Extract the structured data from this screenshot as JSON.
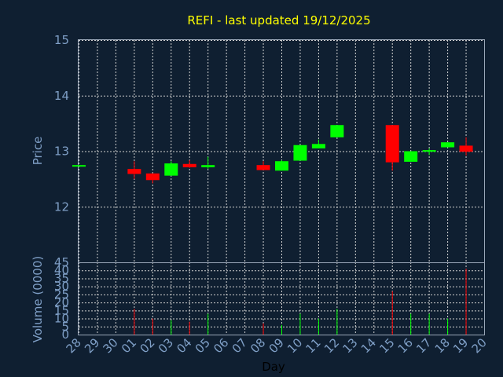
{
  "chart_data": {
    "title": "REFI - last updated 19/12/2025",
    "type": "candlestick",
    "xlabel": "Day",
    "days": [
      "28",
      "29",
      "30",
      "01",
      "02",
      "03",
      "04",
      "05",
      "06",
      "07",
      "08",
      "09",
      "10",
      "11",
      "12",
      "13",
      "14",
      "15",
      "16",
      "17",
      "18",
      "19",
      "20"
    ],
    "price": {
      "ylabel": "Price",
      "ylim": [
        11,
        15
      ],
      "yticks": [
        12,
        13,
        14,
        15
      ],
      "candles": [
        {
          "day": "28",
          "open": 12.75,
          "close": 12.75,
          "high": 12.75,
          "low": 12.75,
          "color": "#00ff00"
        },
        {
          "day": "01",
          "open": 12.68,
          "close": 12.59,
          "high": 12.82,
          "low": 12.5,
          "color": "#ff0000"
        },
        {
          "day": "02",
          "open": 12.6,
          "close": 12.48,
          "high": 12.6,
          "low": 12.42,
          "color": "#ff0000"
        },
        {
          "day": "03",
          "open": 12.56,
          "close": 12.78,
          "high": 12.82,
          "low": 12.56,
          "color": "#00ff00"
        },
        {
          "day": "04",
          "open": 12.77,
          "close": 12.71,
          "high": 12.84,
          "low": 12.7,
          "color": "#ff0000"
        },
        {
          "day": "05",
          "open": 12.71,
          "close": 12.75,
          "high": 12.9,
          "low": 12.68,
          "color": "#00ff00"
        },
        {
          "day": "08",
          "open": 12.75,
          "close": 12.66,
          "high": 12.82,
          "low": 12.66,
          "color": "#ff0000"
        },
        {
          "day": "09",
          "open": 12.65,
          "close": 12.82,
          "high": 12.84,
          "low": 12.65,
          "color": "#00ff00"
        },
        {
          "day": "10",
          "open": 12.83,
          "close": 13.11,
          "high": 13.11,
          "low": 12.83,
          "color": "#00ff00"
        },
        {
          "day": "11",
          "open": 13.05,
          "close": 13.13,
          "high": 13.21,
          "low": 13.05,
          "color": "#00ff00"
        },
        {
          "day": "12",
          "open": 13.25,
          "close": 13.47,
          "high": 13.47,
          "low": 13.25,
          "color": "#00ff00"
        },
        {
          "day": "15",
          "open": 13.47,
          "close": 12.8,
          "high": 13.47,
          "low": 12.65,
          "color": "#ff0000"
        },
        {
          "day": "16",
          "open": 12.81,
          "close": 13.0,
          "high": 13.0,
          "low": 12.81,
          "color": "#00ff00"
        },
        {
          "day": "17",
          "open": 12.99,
          "close": 13.02,
          "high": 13.05,
          "low": 12.93,
          "color": "#00ff00"
        },
        {
          "day": "18",
          "open": 13.07,
          "close": 13.16,
          "high": 13.16,
          "low": 13.07,
          "color": "#00ff00"
        },
        {
          "day": "19",
          "open": 13.1,
          "close": 12.99,
          "high": 13.25,
          "low": 12.92,
          "color": "#ff0000"
        }
      ]
    },
    "volume": {
      "ylabel": "Volume (0000)",
      "ylim": [
        0,
        45
      ],
      "yticks": [
        0,
        5,
        10,
        15,
        20,
        25,
        30,
        35,
        40,
        45
      ],
      "bars": [
        {
          "day": "01",
          "value": 16,
          "color": "#ff0000"
        },
        {
          "day": "02",
          "value": 10,
          "color": "#ff0000"
        },
        {
          "day": "03",
          "value": 9,
          "color": "#00ff00"
        },
        {
          "day": "04",
          "value": 8,
          "color": "#ff0000"
        },
        {
          "day": "05",
          "value": 13,
          "color": "#00ff00"
        },
        {
          "day": "08",
          "value": 7,
          "color": "#ff0000"
        },
        {
          "day": "09",
          "value": 6,
          "color": "#00ff00"
        },
        {
          "day": "10",
          "value": 13,
          "color": "#00ff00"
        },
        {
          "day": "11",
          "value": 10,
          "color": "#00ff00"
        },
        {
          "day": "12",
          "value": 16,
          "color": "#00ff00"
        },
        {
          "day": "15",
          "value": 27,
          "color": "#ff0000"
        },
        {
          "day": "16",
          "value": 13,
          "color": "#00ff00"
        },
        {
          "day": "17",
          "value": 13,
          "color": "#00ff00"
        },
        {
          "day": "18",
          "value": 10,
          "color": "#00ff00"
        },
        {
          "day": "19",
          "value": 41,
          "color": "#ff0000"
        }
      ]
    },
    "colors": {
      "background": "#0f1f31",
      "title": "#ffff00",
      "labels": "#7f9fc6",
      "up": "#00ff00",
      "down": "#ff0000"
    },
    "grid": true
  }
}
